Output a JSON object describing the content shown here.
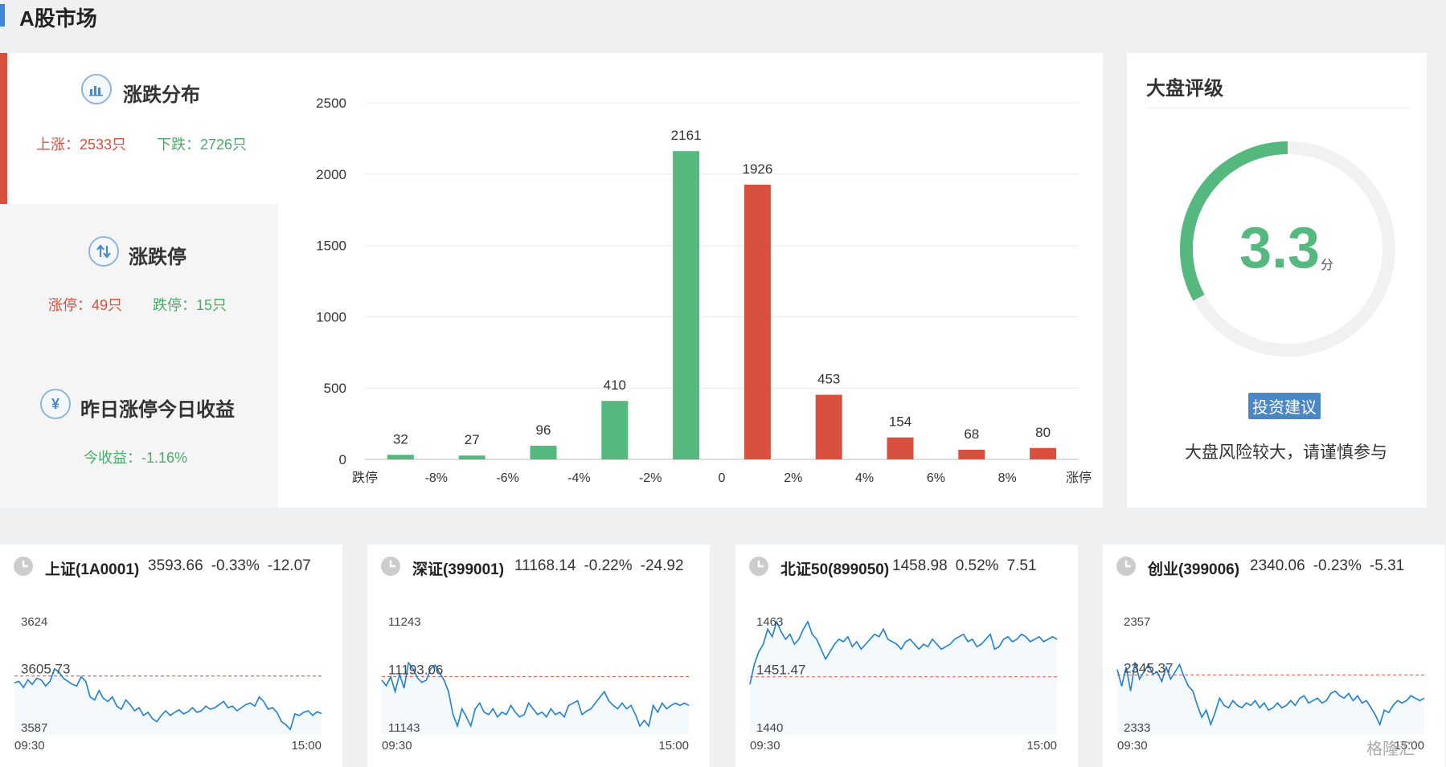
{
  "header": {
    "title": "A股市场"
  },
  "rise_fall": {
    "title": "涨跌分布",
    "up": "上涨：2533只",
    "down": "下跌：2726只"
  },
  "limit": {
    "title": "涨跌停",
    "limit_up": "涨停：49只",
    "limit_down": "跌停：15只"
  },
  "yesterday": {
    "title": "昨日涨停今日收益",
    "icon": "¥",
    "gain": "今收益：-1.16%"
  },
  "rating": {
    "title": "大盘评级",
    "score": "3.3",
    "unit": "分",
    "score_fraction": 0.33,
    "advice_button": "投资建议",
    "advice": "大盘风险较大，请谨慎参与"
  },
  "colors": {
    "up": "#d9503f",
    "down": "#55b87e",
    "accent": "#3f86d8",
    "line": "#1f7fd0"
  },
  "chart_data": {
    "type": "bar",
    "categories": [
      "跌停",
      "-8%",
      "-6%",
      "-4%",
      "-2%",
      "0",
      "2%",
      "4%",
      "6%",
      "8%",
      "涨停"
    ],
    "bars": [
      {
        "value": 32,
        "label": "32",
        "side": "down"
      },
      {
        "value": 27,
        "label": "27",
        "side": "down"
      },
      {
        "value": 96,
        "label": "96",
        "side": "down"
      },
      {
        "value": 410,
        "label": "410",
        "side": "down"
      },
      {
        "value": 2161,
        "label": "2161",
        "side": "down"
      },
      {
        "value": 1926,
        "label": "1926",
        "side": "up"
      },
      {
        "value": 453,
        "label": "453",
        "side": "up"
      },
      {
        "value": 154,
        "label": "154",
        "side": "up"
      },
      {
        "value": 68,
        "label": "68",
        "side": "up"
      },
      {
        "value": 80,
        "label": "80",
        "side": "up"
      }
    ],
    "yticks": [
      "0",
      "500",
      "1000",
      "1500",
      "2000",
      "2500"
    ],
    "ylim": [
      0,
      2500
    ],
    "grid": true
  },
  "indices": [
    {
      "name": "上证(1A0001)",
      "price": "3593.66",
      "pct": "-0.33%",
      "chg": "-12.07",
      "ymax": "3624",
      "yref": "3605.73",
      "ymin": "3587",
      "t0": "09:30",
      "t1": "15:00",
      "points": [
        3603.5,
        3604.0,
        3602.0,
        3604.5,
        3603.0,
        3605.0,
        3604.5,
        3602.5,
        3604.0,
        3608.0,
        3607.0,
        3605.0,
        3604.0,
        3603.0,
        3602.5,
        3605.5,
        3604.0,
        3599.0,
        3598.0,
        3601.0,
        3598.5,
        3597.5,
        3599.0,
        3596.0,
        3595.0,
        3598.0,
        3596.5,
        3594.5,
        3595.5,
        3593.0,
        3594.0,
        3592.0,
        3591.0,
        3593.0,
        3594.5,
        3593.0,
        3594.0,
        3594.8,
        3593.5,
        3594.2,
        3595.5,
        3594.0,
        3594.5,
        3596.0,
        3595.0,
        3595.5,
        3596.5,
        3597.5,
        3595.5,
        3596.0,
        3594.5,
        3595.5,
        3596.5,
        3597.0,
        3596.0,
        3599.0,
        3597.5,
        3595.0,
        3595.5,
        3594.0,
        3591.0,
        3590.0,
        3588.5,
        3593.5,
        3593.0,
        3594.0,
        3594.5,
        3593.0,
        3594.2,
        3593.6
      ]
    },
    {
      "name": "深证(399001)",
      "price": "11168.14",
      "pct": "-0.22%",
      "chg": "-24.92",
      "ymax": "11243",
      "yref": "11193.06",
      "ymin": "11143",
      "t0": "09:30",
      "t1": "15:00",
      "points": [
        11190,
        11185,
        11193,
        11180,
        11195,
        11183,
        11205,
        11200,
        11192,
        11188,
        11190,
        11200,
        11203,
        11196,
        11190,
        11180,
        11160,
        11150,
        11165,
        11158,
        11150,
        11165,
        11170,
        11162,
        11160,
        11165,
        11158,
        11162,
        11160,
        11168,
        11162,
        11158,
        11160,
        11170,
        11165,
        11160,
        11162,
        11158,
        11165,
        11160,
        11162,
        11158,
        11168,
        11170,
        11172,
        11160,
        11163,
        11165,
        11170,
        11175,
        11180,
        11172,
        11168,
        11165,
        11170,
        11165,
        11168,
        11160,
        11150,
        11155,
        11150,
        11168,
        11162,
        11170,
        11165,
        11168,
        11170,
        11168,
        11170,
        11168
      ]
    },
    {
      "name": "北证50(899050)",
      "price": "1458.98",
      "pct": "0.52%",
      "chg": "7.51",
      "ymax": "1463",
      "yref": "1451.47",
      "ymin": "1440",
      "t0": "09:30",
      "t1": "15:00",
      "points": [
        1450.0,
        1454.0,
        1456.5,
        1458.0,
        1461.0,
        1459.5,
        1462.5,
        1460.5,
        1459.0,
        1460.0,
        1458.0,
        1459.0,
        1461.0,
        1462.5,
        1460.0,
        1459.0,
        1457.0,
        1455.0,
        1456.5,
        1458.0,
        1459.0,
        1458.5,
        1459.5,
        1457.5,
        1458.5,
        1457.0,
        1458.0,
        1459.0,
        1460.0,
        1459.5,
        1461.0,
        1459.0,
        1458.5,
        1458.0,
        1457.0,
        1458.5,
        1459.0,
        1458.0,
        1457.0,
        1458.0,
        1457.5,
        1459.0,
        1458.0,
        1457.0,
        1457.5,
        1458.0,
        1459.0,
        1459.5,
        1460.0,
        1458.5,
        1459.0,
        1457.5,
        1458.0,
        1459.0,
        1460.0,
        1457.0,
        1457.5,
        1459.0,
        1459.5,
        1458.5,
        1459.0,
        1460.0,
        1459.5,
        1458.5,
        1459.0,
        1459.5,
        1458.5,
        1459.0,
        1459.5,
        1459.0
      ]
    },
    {
      "name": "创业(399006)",
      "price": "2340.06",
      "pct": "-0.23%",
      "chg": "-5.31",
      "ymax": "2357",
      "yref": "2345.37",
      "ymin": "2333",
      "t0": "09:30",
      "t1": "15:00",
      "points": [
        2346.5,
        2343.0,
        2347.0,
        2342.0,
        2348.0,
        2344.5,
        2346.0,
        2347.5,
        2345.5,
        2346.0,
        2344.0,
        2347.0,
        2344.5,
        2346.0,
        2347.5,
        2345.0,
        2343.0,
        2342.0,
        2339.0,
        2336.5,
        2338.0,
        2335.0,
        2337.5,
        2340.5,
        2339.0,
        2338.5,
        2340.0,
        2339.0,
        2338.5,
        2339.5,
        2339.0,
        2340.0,
        2338.5,
        2339.5,
        2338.0,
        2338.5,
        2339.5,
        2338.5,
        2339.0,
        2340.0,
        2339.0,
        2340.5,
        2341.0,
        2339.5,
        2340.0,
        2340.5,
        2339.5,
        2340.0,
        2341.5,
        2342.0,
        2341.0,
        2340.5,
        2341.5,
        2340.0,
        2341.0,
        2339.5,
        2340.0,
        2338.5,
        2337.0,
        2335.0,
        2338.0,
        2337.5,
        2339.0,
        2340.0,
        2339.5,
        2340.0,
        2341.0,
        2340.5,
        2340.0,
        2340.5
      ]
    }
  ],
  "watermark": "格隆汇"
}
